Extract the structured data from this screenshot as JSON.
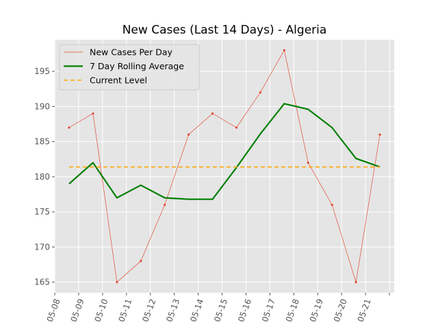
{
  "chart_data": {
    "type": "line",
    "title": "New Cases (Last 14 Days) - Algeria",
    "xlabel": "",
    "ylabel": "",
    "x_tick_labels": [
      "05-08",
      "05-09",
      "05-10",
      "05-11",
      "05-12",
      "05-13",
      "05-14",
      "05-15",
      "05-16",
      "05-17",
      "05-18",
      "05-19",
      "05-20",
      "05-21"
    ],
    "ylim": [
      163.5,
      199.5
    ],
    "y_ticks": [
      165,
      170,
      175,
      180,
      185,
      190,
      195
    ],
    "grid": true,
    "legend_position": "top-left",
    "series": [
      {
        "name": "New Cases Per Day",
        "color": "#e24a33",
        "style": "thin-line-with-dots",
        "points": [
          [
            "05-08",
            187
          ],
          [
            "05-09",
            189
          ],
          [
            "05-10",
            165
          ],
          [
            "05-11",
            168
          ],
          [
            "05-12",
            176
          ],
          [
            "05-13",
            186
          ],
          [
            "05-14",
            189
          ],
          [
            "05-15",
            187
          ],
          [
            "05-16",
            192
          ],
          [
            "05-17",
            198
          ],
          [
            "05-18",
            182
          ],
          [
            "05-19",
            176
          ],
          [
            "05-20",
            165
          ],
          [
            "05-21",
            186
          ]
        ]
      },
      {
        "name": "7 Day Rolling Average",
        "color": "#008000",
        "style": "thick-line",
        "points": [
          [
            "05-08",
            179.0
          ],
          [
            "05-09",
            182.0
          ],
          [
            "05-10",
            177.0
          ],
          [
            "05-11",
            178.8
          ],
          [
            "05-12",
            177.0
          ],
          [
            "05-13",
            176.8
          ],
          [
            "05-14",
            176.8
          ],
          [
            "05-15",
            181.3
          ],
          [
            "05-16",
            186.1
          ],
          [
            "05-17",
            190.4
          ],
          [
            "05-18",
            189.6
          ],
          [
            "05-19",
            187.0
          ],
          [
            "05-20",
            182.6
          ],
          [
            "05-21",
            181.4
          ]
        ]
      },
      {
        "name": "Current Level",
        "color": "#ffa500",
        "style": "dashed-line",
        "value": 181.4
      }
    ]
  }
}
